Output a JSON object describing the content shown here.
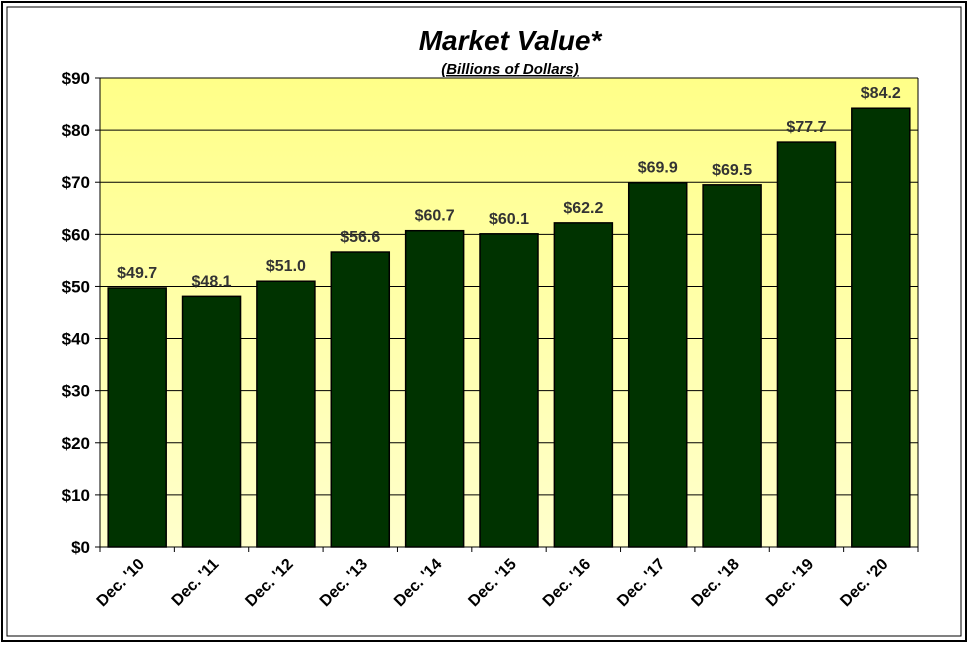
{
  "chart_data": {
    "type": "bar",
    "title": "Market Value*",
    "subtitle": "(Billions of Dollars)",
    "categories": [
      "Dec. '10",
      "Dec. '11",
      "Dec. '12",
      "Dec. '13",
      "Dec. '14",
      "Dec. '15",
      "Dec. '16",
      "Dec. '17",
      "Dec. '18",
      "Dec. '19",
      "Dec. '20"
    ],
    "values": [
      49.7,
      48.1,
      51.0,
      56.6,
      60.7,
      60.1,
      62.2,
      69.9,
      69.5,
      77.7,
      84.2
    ],
    "value_labels": [
      "$49.7",
      "$48.1",
      "$51.0",
      "$56.6",
      "$60.7",
      "$60.1",
      "$62.2",
      "$69.9",
      "$69.5",
      "$77.7",
      "$84.2"
    ],
    "color": "#003300",
    "ylim": [
      0,
      90
    ],
    "yticks": [
      {
        "value": 0,
        "label": "$0"
      },
      {
        "value": 10,
        "label": "$10"
      },
      {
        "value": 20,
        "label": "$20"
      },
      {
        "value": 30,
        "label": "$30"
      },
      {
        "value": 40,
        "label": "$40"
      },
      {
        "value": 50,
        "label": "$50"
      },
      {
        "value": 60,
        "label": "$60"
      },
      {
        "value": 70,
        "label": "$70"
      },
      {
        "value": 80,
        "label": "$80"
      },
      {
        "value": 90,
        "label": "$90"
      }
    ],
    "grid": true
  }
}
